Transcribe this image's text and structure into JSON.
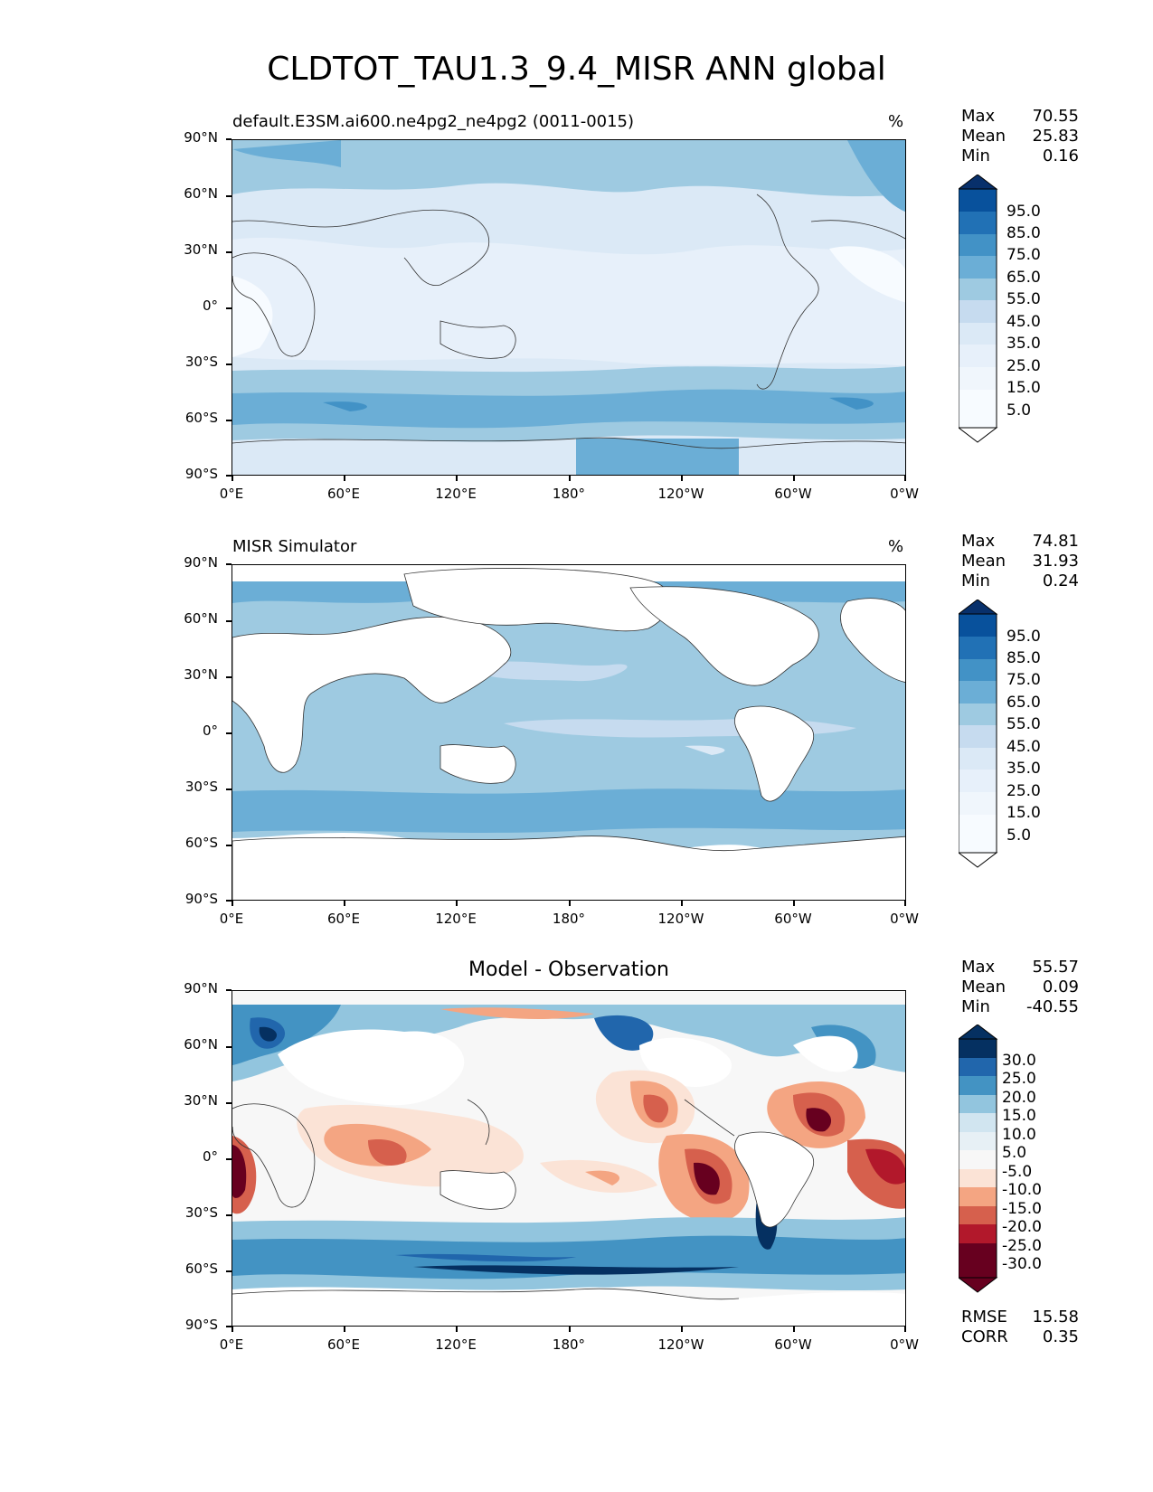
{
  "figure": {
    "title": "CLDTOT_TAU1.3_9.4_MISR ANN global"
  },
  "axes": {
    "lat_labels": [
      "90°N",
      "60°N",
      "30°N",
      "0°",
      "30°S",
      "60°S",
      "90°S"
    ],
    "lon_labels": [
      "0°E",
      "60°E",
      "120°E",
      "180°",
      "120°W",
      "60°W",
      "0°W"
    ]
  },
  "panels": [
    {
      "title_left": "default.E3SM.ai600.ne4pg2_ne4pg2 (0011-0015)",
      "units": "%",
      "stats": {
        "max_label": "Max",
        "max": "70.55",
        "mean_label": "Mean",
        "mean": "25.83",
        "min_label": "Min",
        "min": "0.16"
      },
      "colorbar": {
        "labels": [
          "95.0",
          "85.0",
          "75.0",
          "65.0",
          "55.0",
          "45.0",
          "35.0",
          "25.0",
          "15.0",
          "5.0"
        ],
        "colors": [
          "#08306b",
          "#08519c",
          "#2171b5",
          "#4292c6",
          "#6baed6",
          "#9ecae1",
          "#c6dbef",
          "#dbe9f6",
          "#e7f0fa",
          "#f7fbff"
        ]
      }
    },
    {
      "title_left": "MISR Simulator",
      "units": "%",
      "stats": {
        "max_label": "Max",
        "max": "74.81",
        "mean_label": "Mean",
        "mean": "31.93",
        "min_label": "Min",
        "min": "0.24"
      },
      "colorbar": {
        "labels": [
          "95.0",
          "85.0",
          "75.0",
          "65.0",
          "55.0",
          "45.0",
          "35.0",
          "25.0",
          "15.0",
          "5.0"
        ],
        "colors": [
          "#08306b",
          "#08519c",
          "#2171b5",
          "#4292c6",
          "#6baed6",
          "#9ecae1",
          "#c6dbef",
          "#dbe9f6",
          "#e7f0fa",
          "#f7fbff"
        ]
      }
    },
    {
      "title_center": "Model - Observation",
      "stats": {
        "max_label": "Max",
        "max": "55.57",
        "mean_label": "Mean",
        "mean": "0.09",
        "min_label": "Min",
        "min": "-40.55"
      },
      "colorbar": {
        "labels": [
          "30.0",
          "25.0",
          "20.0",
          "15.0",
          "10.0",
          "5.0",
          "-5.0",
          "-10.0",
          "-15.0",
          "-20.0",
          "-25.0",
          "-30.0"
        ],
        "colors": [
          "#053061",
          "#2166ac",
          "#4393c3",
          "#92c5de",
          "#d1e5f0",
          "#e7f0f5",
          "#f7f7f7",
          "#fbe3d6",
          "#f4a582",
          "#d6604d",
          "#b2182b",
          "#67001f"
        ]
      },
      "rmse_label": "RMSE",
      "rmse": "15.58",
      "corr_label": "CORR",
      "corr": "0.35"
    }
  ]
}
